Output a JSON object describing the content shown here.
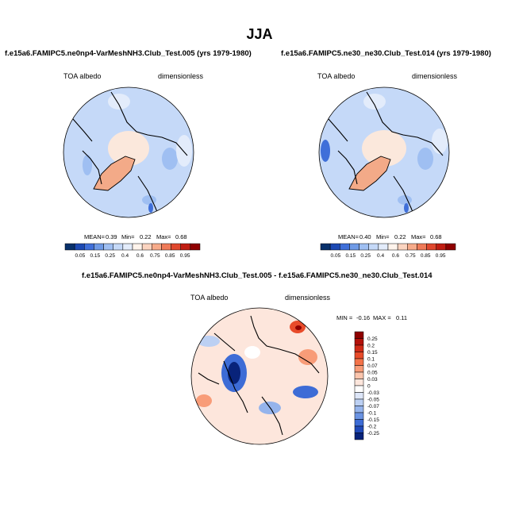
{
  "figure": {
    "title": "JJA"
  },
  "chart_data": [
    {
      "type": "heatmap",
      "projection": "north-polar-stereographic",
      "title": "f.e15a6.FAMIPC5.ne0np4-VarMeshNH3.Club_Test.005 (yrs 1979-1980)",
      "variable": "TOA albedo",
      "units": "dimensionless",
      "stats": {
        "mean_label": "MEAN=",
        "mean": "0.39",
        "min_label": "Min=",
        "min": "0.22",
        "max_label": "Max=",
        "max": "0.68"
      },
      "colorbar": {
        "orientation": "horizontal",
        "levels": [
          "0.05",
          "0.15",
          "0.25",
          "0.4",
          "0.6",
          "0.75",
          "0.85",
          "0.95"
        ],
        "colors": [
          "#08306b",
          "#1c49b3",
          "#3f6fd9",
          "#6f9ae6",
          "#9fbff2",
          "#c5d9f8",
          "#e3ecfb",
          "#fff4ec",
          "#fbd4c0",
          "#f7ab8a",
          "#ef7a58",
          "#e0482e",
          "#c01d12",
          "#8f0000"
        ]
      }
    },
    {
      "type": "heatmap",
      "projection": "north-polar-stereographic",
      "title": "f.e15a6.FAMIPC5.ne30_ne30.Club_Test.014 (yrs 1979-1980)",
      "variable": "TOA albedo",
      "units": "dimensionless",
      "stats": {
        "mean_label": "MEAN=",
        "mean": "0.40",
        "min_label": "Min=",
        "min": "0.22",
        "max_label": "Max=",
        "max": "0.68"
      },
      "colorbar": {
        "orientation": "horizontal",
        "levels": [
          "0.05",
          "0.15",
          "0.25",
          "0.4",
          "0.6",
          "0.75",
          "0.85",
          "0.95"
        ],
        "colors": [
          "#08306b",
          "#1c49b3",
          "#3f6fd9",
          "#6f9ae6",
          "#9fbff2",
          "#c5d9f8",
          "#e3ecfb",
          "#fff4ec",
          "#fbd4c0",
          "#f7ab8a",
          "#ef7a58",
          "#e0482e",
          "#c01d12",
          "#8f0000"
        ]
      }
    },
    {
      "type": "heatmap",
      "projection": "north-polar-stereographic",
      "title": "f.e15a6.FAMIPC5.ne0np4-VarMeshNH3.Club_Test.005 - f.e15a6.FAMIPC5.ne30_ne30.Club_Test.014",
      "variable": "TOA albedo",
      "units": "dimensionless",
      "stats": {
        "min_label": "MIN =",
        "min": "-0.16",
        "max_label": "MAX =",
        "max": "0.11"
      },
      "colorbar": {
        "orientation": "vertical",
        "levels": [
          "0.25",
          "0.2",
          "0.15",
          "0.1",
          "0.07",
          "0.05",
          "0.03",
          "0",
          "-0.03",
          "-0.05",
          "-0.07",
          "-0.1",
          "-0.15",
          "-0.2",
          "-0.25"
        ],
        "colors": [
          "#8f0000",
          "#b3110a",
          "#d02a17",
          "#e84b2a",
          "#f47349",
          "#f89c78",
          "#fbc5ad",
          "#fde6dc",
          "#ffffff",
          "#dde6f8",
          "#bcd0f3",
          "#95b4ec",
          "#6a93e3",
          "#3d6cd6",
          "#2049b8",
          "#08237a"
        ]
      }
    }
  ]
}
